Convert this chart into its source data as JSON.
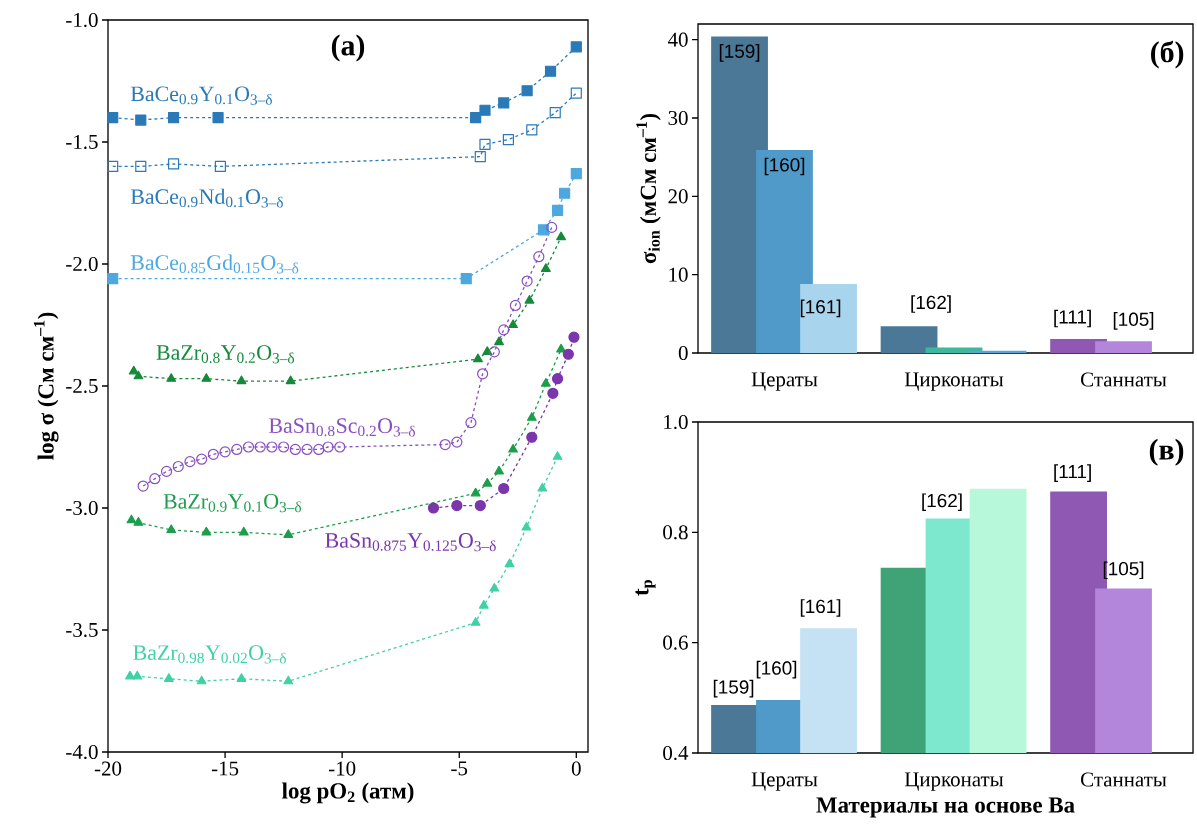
{
  "chart_data": [
    {
      "type": "line",
      "title": "(а)",
      "xlabel": "log pO$_{2}$ (атм)",
      "ylabel": "log σ (См см$^{–1}$)",
      "xlim": [
        -20,
        0.5
      ],
      "ylim": [
        -4,
        -1
      ],
      "xticks": [
        -20,
        -15,
        -10,
        -5,
        0
      ],
      "yticks": [
        {
          "value": -4,
          "label": "-4.0"
        },
        {
          "value": -3.5,
          "label": "-3.5"
        },
        {
          "value": -3,
          "label": "-3.0"
        },
        {
          "value": -2.5,
          "label": "-2.5"
        },
        {
          "value": -2,
          "label": "-2.0"
        },
        {
          "value": -1.5,
          "label": "-1.5"
        },
        {
          "value": -1,
          "label": "-1.0"
        }
      ],
      "line_style": "dashed",
      "series": [
        {
          "name": "BaCe$_{0.9}$Y$_{0.1}$O$_{3–δ}$",
          "color": "#2a7ab8",
          "marker": "square",
          "x": [
            -19.8,
            -18.6,
            -17.2,
            -15.3,
            -4.3,
            -3.9,
            -3.1,
            -2.1,
            -1.1,
            0
          ],
          "values": [
            -1.4,
            -1.41,
            -1.4,
            -1.4,
            -1.4,
            -1.37,
            -1.34,
            -1.29,
            -1.21,
            -1.11
          ]
        },
        {
          "name": "BaCe$_{0.9}$Nd$_{0.1}$O$_{3–δ}$",
          "color": "#2a7ab8",
          "marker": "square",
          "x": [
            -19.8,
            -18.6,
            -17.2,
            -15.2,
            -4.1,
            -3.9,
            -2.9,
            -1.9,
            -0.9,
            0
          ],
          "values": [
            -1.6,
            -1.6,
            -1.59,
            -1.6,
            -1.56,
            -1.51,
            -1.49,
            -1.45,
            -1.38,
            -1.3
          ]
        },
        {
          "name": "BaCe$_{0.85}$Gd$_{0.15}$O$_{3–δ}$",
          "color": "#4ea8e0",
          "marker": "square",
          "x": [
            -19.8,
            -4.7,
            -1.4,
            -0.8,
            -0.5,
            0
          ],
          "values": [
            -2.06,
            -2.06,
            -1.86,
            -1.78,
            -1.71,
            -1.63
          ]
        },
        {
          "name": "BaZr$_{0.8}$Y$_{0.2}$O$_{3–δ}$",
          "color": "#168a3a",
          "marker": "triangle",
          "x": [
            -18.9,
            -18.7,
            -17.3,
            -15.8,
            -14.3,
            -12.2,
            -4.2,
            -3.8,
            -3.3,
            -2.7,
            -2.0,
            -1.3,
            -0.65
          ],
          "values": [
            -2.44,
            -2.46,
            -2.47,
            -2.47,
            -2.48,
            -2.48,
            -2.39,
            -2.36,
            -2.32,
            -2.25,
            -2.15,
            -2.02,
            -1.89
          ]
        },
        {
          "name": "BaSn$_{0.8}$Sc$_{0.2}$O$_{3–δ}$",
          "color": "#8a4fc0",
          "marker": "circle",
          "x": [
            -18.5,
            -18.0,
            -17.5,
            -17.0,
            -16.5,
            -16.0,
            -15.5,
            -15.0,
            -14.5,
            -14.0,
            -13.5,
            -13.0,
            -12.5,
            -12.0,
            -11.5,
            -11.0,
            -10.6,
            -10.1,
            -5.6,
            -5.1,
            -4.5,
            -4.0,
            -3.5,
            -3.1,
            -2.6,
            -2.1,
            -1.6,
            -1.05
          ],
          "values": [
            -2.91,
            -2.88,
            -2.85,
            -2.83,
            -2.81,
            -2.8,
            -2.78,
            -2.77,
            -2.76,
            -2.75,
            -2.75,
            -2.75,
            -2.75,
            -2.76,
            -2.76,
            -2.76,
            -2.75,
            -2.75,
            -2.74,
            -2.73,
            -2.65,
            -2.45,
            -2.36,
            -2.27,
            -2.17,
            -2.07,
            -1.97,
            -1.85
          ]
        },
        {
          "name": "BaZr$_{0.9}$Y$_{0.1}$O$_{3–δ}$",
          "color": "#1c9e4c",
          "marker": "triangle",
          "x": [
            -19.0,
            -18.7,
            -17.3,
            -15.8,
            -14.2,
            -12.3,
            -4.3,
            -3.8,
            -3.3,
            -2.7,
            -1.9,
            -1.3,
            -0.65
          ],
          "values": [
            -3.05,
            -3.06,
            -3.09,
            -3.1,
            -3.1,
            -3.11,
            -2.94,
            -2.9,
            -2.85,
            -2.76,
            -2.63,
            -2.49,
            -2.35
          ]
        },
        {
          "name": "BaSn$_{0.875}$Y$_{0.125}$O$_{3–δ}$",
          "color": "#7a36aa",
          "marker": "circle",
          "x": [
            -6.1,
            -5.1,
            -4.1,
            -3.1,
            -1.9,
            -1.0,
            -0.8,
            -0.34,
            -0.1
          ],
          "values": [
            -3.0,
            -2.99,
            -2.99,
            -2.92,
            -2.71,
            -2.53,
            -2.47,
            -2.37,
            -2.3
          ]
        },
        {
          "name": "BaZr$_{0.98}$Y$_{0.02}$O$_{3–δ}$",
          "color": "#3fd1a5",
          "marker": "triangle",
          "x": [
            -19.06,
            -18.75,
            -17.4,
            -16.0,
            -14.3,
            -12.3,
            -4.3,
            -3.95,
            -3.5,
            -2.85,
            -2.13,
            -1.45,
            -0.8
          ],
          "values": [
            -3.69,
            -3.69,
            -3.7,
            -3.71,
            -3.7,
            -3.71,
            -3.47,
            -3.4,
            -3.33,
            -3.23,
            -3.08,
            -2.92,
            -2.79
          ]
        }
      ]
    },
    {
      "type": "bar",
      "title": "(б)",
      "ylabel": "σ$_{ion}$ (мСм см$^{–1}$)",
      "categories": [
        "Цераты",
        "Цирконаты",
        "Станнаты"
      ],
      "ylim": [
        0,
        42
      ],
      "yticks": [
        0,
        10,
        20,
        30,
        40
      ],
      "series": [
        {
          "colors": [
            "#4a7896",
            "#4a7896",
            "#8e58b3"
          ],
          "values": [
            40.4,
            3.4,
            1.8
          ]
        },
        {
          "colors": [
            "#4f9ac9",
            "#3db89a",
            "#b385db"
          ],
          "values": [
            25.9,
            0.7,
            1.5
          ]
        },
        {
          "colors": [
            "#a8d4ee",
            "#5aa5d6",
            null
          ],
          "values": [
            8.8,
            0.3,
            null
          ]
        }
      ],
      "annotations": [
        "[159]",
        "[160]",
        "[161]",
        "[162]",
        "[111]",
        "[105]"
      ]
    },
    {
      "type": "bar",
      "title": "(в)",
      "ylabel": "t$_{p}$",
      "xlabel": "Материалы на основе Ba",
      "categories": [
        "Цераты",
        "Цирконаты",
        "Станнаты"
      ],
      "ylim": [
        0.4,
        1.0
      ],
      "yticks": [
        0.4,
        0.6,
        0.8,
        {
          "value": 1,
          "label": "1.0"
        }
      ],
      "series": [
        {
          "colors": [
            "#4a7896",
            "#3fa377",
            "#8e58b3"
          ],
          "values": [
            0.487,
            0.736,
            0.874
          ]
        },
        {
          "colors": [
            "#4f9ac9",
            "#7ee8cf",
            "#b385db"
          ],
          "values": [
            0.496,
            0.825,
            0.698
          ]
        },
        {
          "colors": [
            "#c5e2f4",
            "#b8f8da",
            null
          ],
          "values": [
            0.626,
            0.879,
            null
          ]
        }
      ],
      "annotations": [
        "[159]",
        "[160]",
        "[161]",
        "[162]",
        "[111]",
        "[105]"
      ]
    }
  ]
}
